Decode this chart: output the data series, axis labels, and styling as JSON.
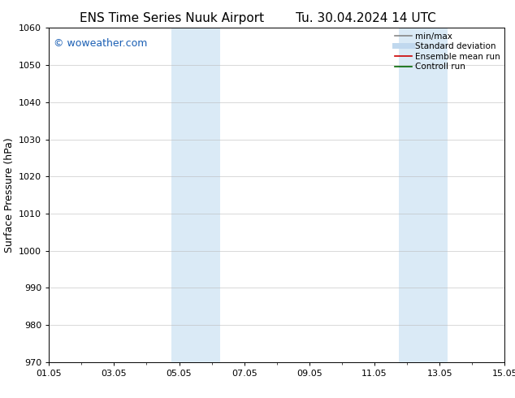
{
  "title_left": "ENS Time Series Nuuk Airport",
  "title_right": "Tu. 30.04.2024 14 UTC",
  "ylabel": "Surface Pressure (hPa)",
  "ylim": [
    970,
    1060
  ],
  "yticks": [
    970,
    980,
    990,
    1000,
    1010,
    1020,
    1030,
    1040,
    1050,
    1060
  ],
  "xtick_labels": [
    "01.05",
    "03.05",
    "05.05",
    "07.05",
    "09.05",
    "11.05",
    "13.05",
    "15.05"
  ],
  "xtick_positions": [
    0,
    2,
    4,
    6,
    8,
    10,
    12,
    14
  ],
  "xlim": [
    0,
    14
  ],
  "shaded_bands": [
    {
      "x_start": 3.75,
      "x_end": 5.25,
      "color": "#daeaf6"
    },
    {
      "x_start": 10.75,
      "x_end": 12.25,
      "color": "#daeaf6"
    }
  ],
  "watermark_text": "© woweather.com",
  "watermark_color": "#1a5fb4",
  "legend_items": [
    {
      "label": "min/max",
      "color": "#888888",
      "lw": 1.2
    },
    {
      "label": "Standard deviation",
      "color": "#c0d8ee",
      "lw": 5
    },
    {
      "label": "Ensemble mean run",
      "color": "#cc0000",
      "lw": 1.2
    },
    {
      "label": "Controll run",
      "color": "#006600",
      "lw": 1.2
    }
  ],
  "background_color": "#ffffff",
  "grid_color": "#bbbbbb",
  "title_fontsize": 11,
  "ylabel_fontsize": 9,
  "tick_fontsize": 8,
  "watermark_fontsize": 9,
  "legend_fontsize": 7.5
}
